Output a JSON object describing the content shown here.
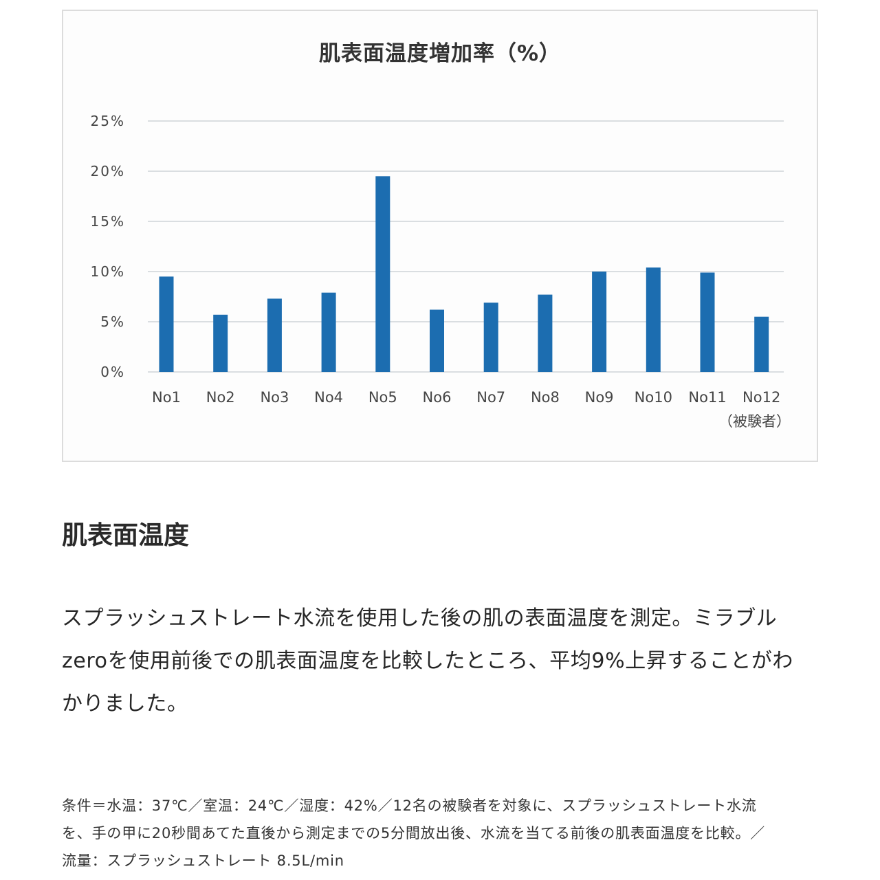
{
  "colors": {
    "bar": "#1c6db0",
    "grid": "#cfd3d8",
    "axis_text": "#444444",
    "frame": "#dcdcdc"
  },
  "chart_data": {
    "type": "bar",
    "title": "肌表面温度増加率（%）",
    "categories": [
      "No1",
      "No2",
      "No3",
      "No4",
      "No5",
      "No6",
      "No7",
      "No8",
      "No9",
      "No10",
      "No11",
      "No12"
    ],
    "values": [
      9.5,
      5.7,
      7.3,
      7.9,
      19.5,
      6.2,
      6.9,
      7.7,
      10.0,
      10.4,
      9.9,
      5.5
    ],
    "xlabel": "（被験者）",
    "ylim": [
      0,
      25
    ],
    "yticks": [
      0,
      5,
      10,
      15,
      20,
      25
    ],
    "ytick_labels": [
      "0%",
      "5%",
      "10%",
      "15%",
      "20%",
      "25%"
    ],
    "grid": true
  },
  "article": {
    "heading": "肌表面温度",
    "paragraph_lines": [
      "スプラッシュストレート水流を使用した後の肌の表面温度を測定。ミラブル",
      "zeroを使用前後での肌表面温度を比較したところ、平均9%上昇することがわ",
      "かりました。"
    ],
    "note_lines": [
      "条件＝水温：37℃／室温：24℃／湿度：42%／12名の被験者を対象に、スプラッシュストレート水流",
      "を、手の甲に20秒間あてた直後から測定までの5分間放出後、水流を当てる前後の肌表面温度を比較。／",
      "流量：スプラッシュストレート 8.5L/min"
    ]
  }
}
